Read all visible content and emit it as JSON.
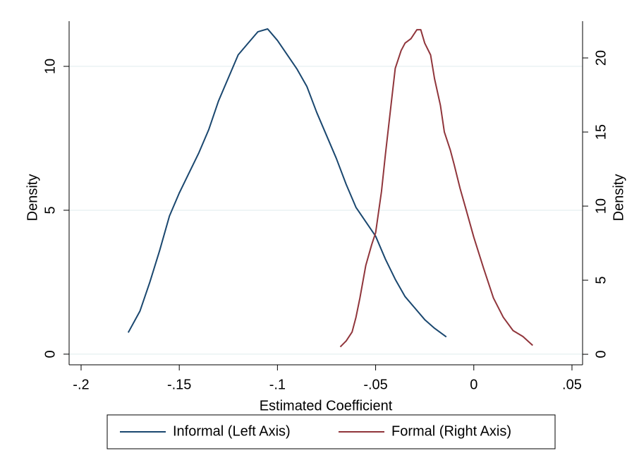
{
  "chart_data": {
    "type": "line",
    "xlabel": "Estimated Coefficient",
    "ylabel": "Density",
    "y2label": "Density",
    "xlim": [
      -0.2061,
      0.0554
    ],
    "ylim": [
      -0.37,
      11.57
    ],
    "y2lim": [
      -0.71,
      22.48
    ],
    "xticks": [
      {
        "value": -0.2,
        "label": "-.2"
      },
      {
        "value": -0.15,
        "label": "-.15"
      },
      {
        "value": -0.1,
        "label": "-.1"
      },
      {
        "value": -0.05,
        "label": "-.05"
      },
      0,
      {
        "value": 0.05,
        "label": ".05"
      }
    ],
    "yticks": [
      0,
      5,
      10
    ],
    "y2ticks": [
      0,
      5,
      10,
      15,
      20
    ],
    "grid": true,
    "legend": "bottom",
    "series": [
      {
        "name": "Informal (Left Axis)",
        "color": "#1a476f",
        "x": [
          -0.176,
          -0.17,
          -0.165,
          -0.16,
          -0.155,
          -0.15,
          -0.145,
          -0.14,
          -0.135,
          -0.13,
          -0.125,
          -0.12,
          -0.115,
          -0.11,
          -0.105,
          -0.1,
          -0.095,
          -0.09,
          -0.085,
          -0.08,
          -0.075,
          -0.07,
          -0.065,
          -0.06,
          -0.055,
          -0.05,
          -0.045,
          -0.04,
          -0.035,
          -0.03,
          -0.025,
          -0.02,
          -0.014
        ],
        "values": [
          0.75,
          1.5,
          2.5,
          3.6,
          4.8,
          5.6,
          6.3,
          7.0,
          7.8,
          8.8,
          9.6,
          10.4,
          10.8,
          11.2,
          11.3,
          10.9,
          10.4,
          9.9,
          9.3,
          8.4,
          7.6,
          6.8,
          5.9,
          5.1,
          4.6,
          4.1,
          3.3,
          2.6,
          2.0,
          1.6,
          1.2,
          0.9,
          0.6
        ]
      },
      {
        "name": "Formal (Right Axis)",
        "color": "#90353b",
        "axis": "y2",
        "x": [
          -0.068,
          -0.065,
          -0.062,
          -0.06,
          -0.058,
          -0.055,
          -0.052,
          -0.05,
          -0.047,
          -0.045,
          -0.042,
          -0.04,
          -0.037,
          -0.035,
          -0.032,
          -0.029,
          -0.027,
          -0.025,
          -0.022,
          -0.02,
          -0.017,
          -0.015,
          -0.012,
          -0.01,
          -0.007,
          -0.004,
          0,
          0.005,
          0.01,
          0.015,
          0.02,
          0.025,
          0.03
        ],
        "values": [
          0.5,
          0.9,
          1.5,
          2.5,
          3.8,
          6.0,
          7.4,
          8.2,
          11.0,
          13.5,
          17.0,
          19.3,
          20.5,
          21.0,
          21.3,
          21.9,
          21.9,
          21.0,
          20.2,
          18.6,
          16.8,
          15.0,
          13.8,
          12.8,
          11.2,
          9.8,
          7.9,
          5.8,
          3.8,
          2.5,
          1.6,
          1.2,
          0.6
        ]
      }
    ]
  }
}
